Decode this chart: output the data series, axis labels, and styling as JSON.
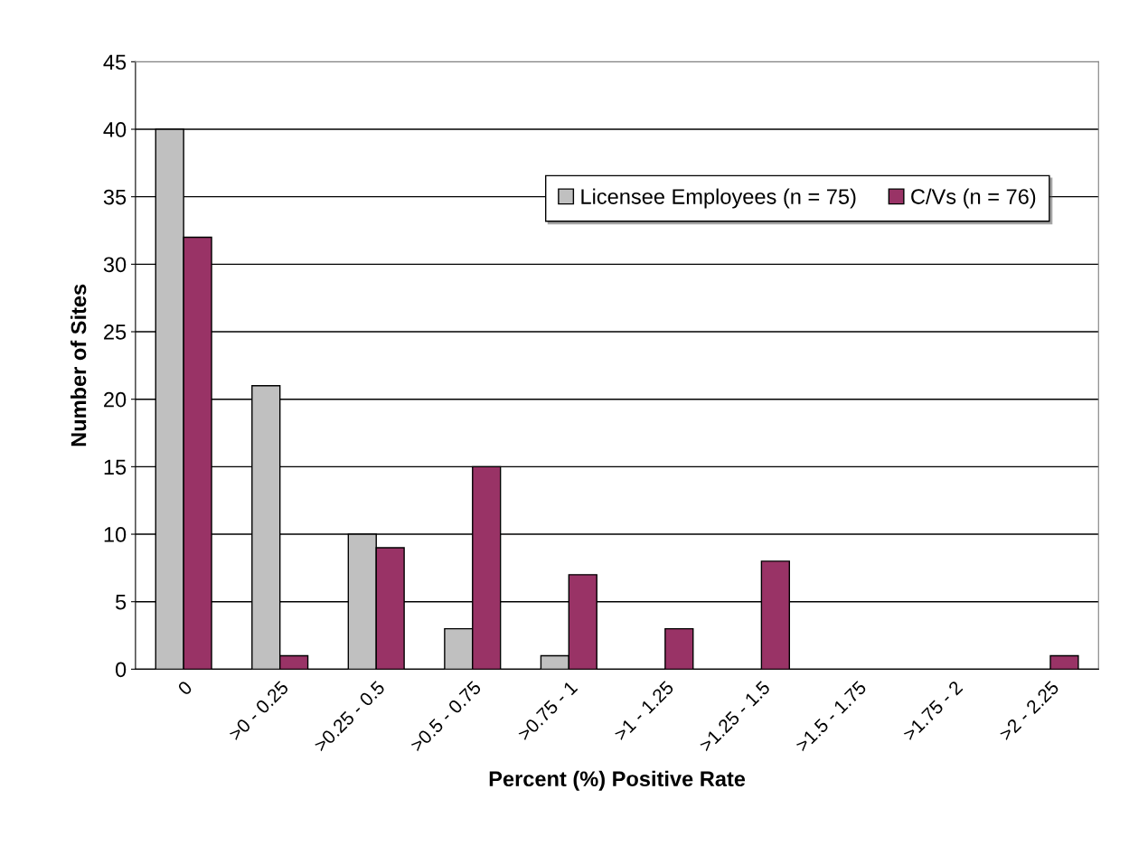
{
  "chart_data": {
    "type": "bar",
    "xlabel": "Percent (%) Positive Rate",
    "ylabel": "Number of Sites",
    "categories": [
      "0",
      ">0 - 0.25",
      ">0.25 - 0.5",
      ">0.5 - 0.75",
      ">0.75 - 1",
      ">1 - 1.25",
      ">1.25 - 1.5",
      ">1.5 - 1.75",
      ">1.75 - 2",
      ">2 - 2.25"
    ],
    "series": [
      {
        "name": "Licensee Employees (n = 75)",
        "color": "#c0c0c0",
        "values": [
          40,
          21,
          10,
          3,
          1,
          0,
          0,
          0,
          0,
          0
        ]
      },
      {
        "name": "C/Vs (n = 76)",
        "color": "#993366",
        "values": [
          32,
          1,
          9,
          15,
          7,
          3,
          8,
          0,
          0,
          1
        ]
      }
    ],
    "ylim": [
      0,
      45
    ],
    "yticks": [
      0,
      5,
      10,
      15,
      20,
      25,
      30,
      35,
      40,
      45
    ],
    "grid": "y",
    "legend": "top right"
  }
}
